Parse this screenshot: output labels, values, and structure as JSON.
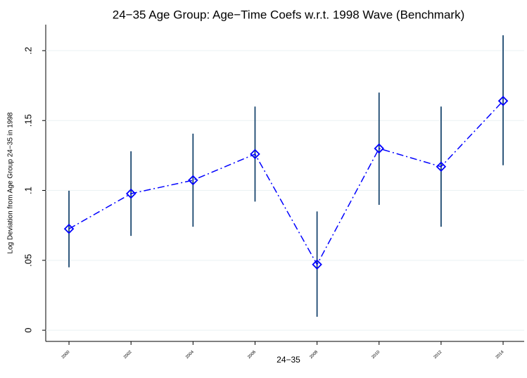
{
  "chart_data": {
    "type": "line",
    "title": "24−35 Age Group: Age−Time Coefs w.r.t. 1998 Wave (Benchmark)",
    "x_label": "24−35",
    "y_label": "Log Deviation from Age Group 24−35 in 1998",
    "x": [
      2000,
      2002,
      2004,
      2006,
      2008,
      2010,
      2012,
      2014
    ],
    "series": [
      {
        "color": "#0000ff",
        "error_color": "#1a476f",
        "values": [
          0.0725,
          0.0977,
          0.1073,
          0.126,
          0.047,
          0.13,
          0.117,
          0.164
        ],
        "ci_low": [
          0.045,
          0.0675,
          0.074,
          0.092,
          0.0096,
          0.0897,
          0.074,
          0.118
        ],
        "ci_high": [
          0.0998,
          0.128,
          0.1406,
          0.16,
          0.085,
          0.17,
          0.16,
          0.211
        ]
      }
    ],
    "xlim": [
      1999.25,
      2014.68
    ],
    "xticks": [
      2000,
      2002,
      2004,
      2006,
      2008,
      2010,
      2012,
      2014
    ],
    "ylim": [
      -0.008,
      0.2186
    ],
    "yticks": [
      {
        "value": 0,
        "label": "0"
      },
      {
        "value": 0.05,
        "label": ".05"
      },
      {
        "value": 0.1,
        "label": ".1"
      },
      {
        "value": 0.15,
        "label": ".15"
      },
      {
        "value": 0.2,
        "label": ".2"
      }
    ],
    "grid": true
  }
}
